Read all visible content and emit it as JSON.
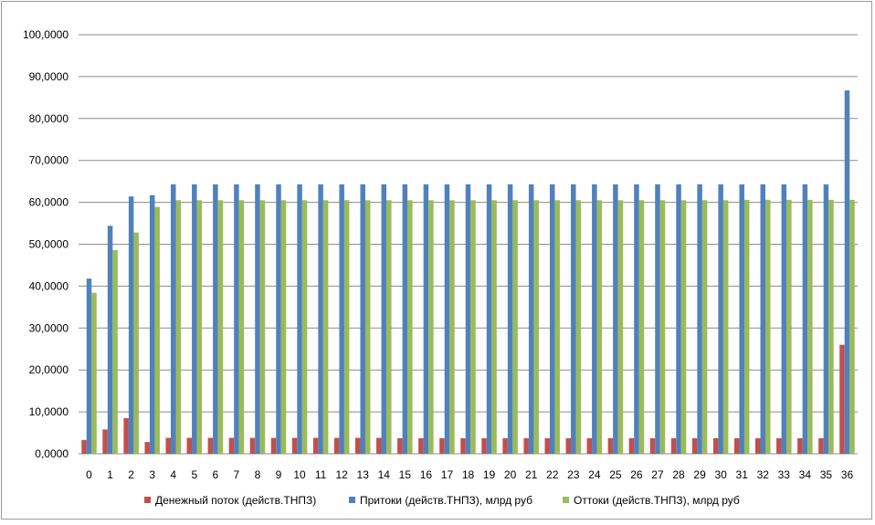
{
  "chart_data": {
    "type": "bar",
    "categories": [
      "0",
      "1",
      "2",
      "3",
      "4",
      "5",
      "6",
      "7",
      "8",
      "9",
      "10",
      "11",
      "12",
      "13",
      "14",
      "15",
      "16",
      "17",
      "18",
      "19",
      "20",
      "21",
      "22",
      "23",
      "24",
      "25",
      "26",
      "27",
      "28",
      "29",
      "30",
      "31",
      "32",
      "33",
      "34",
      "35",
      "36"
    ],
    "ylim": [
      0,
      100
    ],
    "yticks": [
      "0,0000",
      "10,0000",
      "20,0000",
      "30,0000",
      "40,0000",
      "50,0000",
      "60,0000",
      "70,0000",
      "80,0000",
      "90,0000",
      "100,0000"
    ],
    "grid": true,
    "legend_position": "bottom",
    "series": [
      {
        "name": "Денежный поток (действ.ТНПЗ)",
        "color": "#c0504d",
        "values": [
          3.3,
          5.8,
          8.5,
          2.8,
          3.8,
          3.8,
          3.8,
          3.8,
          3.8,
          3.8,
          3.8,
          3.8,
          3.8,
          3.8,
          3.8,
          3.7,
          3.7,
          3.7,
          3.7,
          3.7,
          3.7,
          3.7,
          3.7,
          3.7,
          3.7,
          3.7,
          3.7,
          3.7,
          3.7,
          3.7,
          3.7,
          3.7,
          3.7,
          3.7,
          3.7,
          3.7,
          26.0
        ]
      },
      {
        "name": "Притоки (действ.ТНПЗ),  млрд руб",
        "color": "#4f81bd",
        "values": [
          41.8,
          54.4,
          61.4,
          61.7,
          64.3,
          64.3,
          64.3,
          64.3,
          64.3,
          64.3,
          64.3,
          64.3,
          64.3,
          64.3,
          64.3,
          64.3,
          64.3,
          64.3,
          64.3,
          64.3,
          64.3,
          64.3,
          64.3,
          64.3,
          64.3,
          64.3,
          64.3,
          64.3,
          64.3,
          64.3,
          64.3,
          64.3,
          64.3,
          64.3,
          64.3,
          64.3,
          86.7
        ]
      },
      {
        "name": "Оттоки (действ.ТНПЗ), млрд руб",
        "color": "#9bbb59",
        "values": [
          38.4,
          48.6,
          52.8,
          58.9,
          60.5,
          60.5,
          60.5,
          60.5,
          60.5,
          60.5,
          60.5,
          60.5,
          60.5,
          60.5,
          60.5,
          60.5,
          60.5,
          60.5,
          60.5,
          60.5,
          60.5,
          60.5,
          60.5,
          60.5,
          60.5,
          60.5,
          60.5,
          60.5,
          60.5,
          60.5,
          60.5,
          60.6,
          60.6,
          60.6,
          60.6,
          60.6,
          60.6
        ]
      }
    ]
  }
}
